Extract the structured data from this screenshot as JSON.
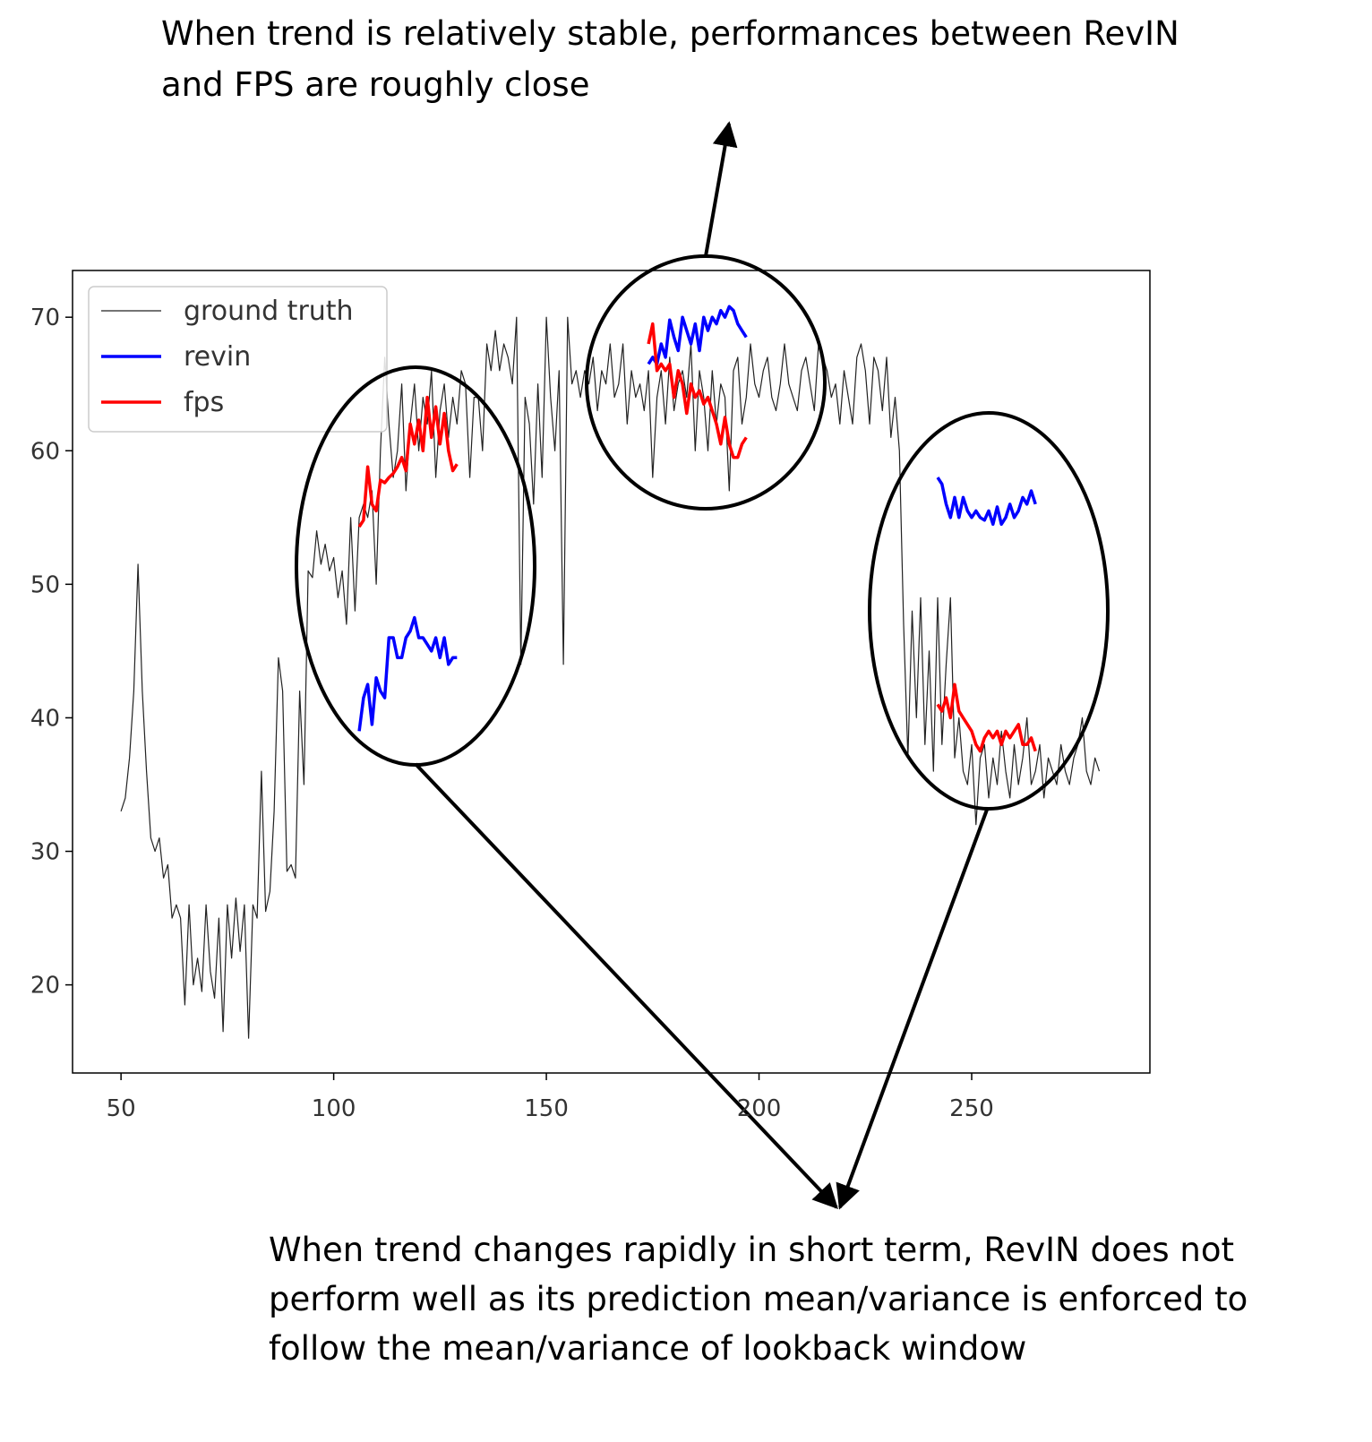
{
  "chart_data": {
    "type": "line",
    "xlim": [
      38.6,
      291.9
    ],
    "ylim": [
      13.4,
      73.5
    ],
    "xticks": [
      50,
      100,
      150,
      200,
      250
    ],
    "yticks": [
      20,
      30,
      40,
      50,
      60,
      70
    ],
    "grid": false,
    "legend": "upper left",
    "series": [
      {
        "name": "ground truth",
        "color": "#222222",
        "x": [
          50,
          51,
          52,
          53,
          54,
          55,
          56,
          57,
          58,
          59,
          60,
          61,
          62,
          63,
          64,
          65,
          66,
          67,
          68,
          69,
          70,
          71,
          72,
          73,
          74,
          75,
          76,
          77,
          78,
          79,
          80,
          81,
          82,
          83,
          84,
          85,
          86,
          87,
          88,
          89,
          90,
          91,
          92,
          93,
          94,
          95,
          96,
          97,
          98,
          99,
          100,
          101,
          102,
          103,
          104,
          105,
          106,
          107,
          108,
          109,
          110,
          111,
          112,
          113,
          114,
          115,
          116,
          117,
          118,
          119,
          120,
          121,
          122,
          123,
          124,
          125,
          126,
          127,
          128,
          129,
          130,
          131,
          132,
          133,
          134,
          135,
          136,
          137,
          138,
          139,
          140,
          141,
          142,
          143,
          144,
          145,
          146,
          147,
          148,
          149,
          150,
          151,
          152,
          153,
          154,
          155,
          156,
          157,
          158,
          159,
          160,
          161,
          162,
          163,
          164,
          165,
          166,
          167,
          168,
          169,
          170,
          171,
          172,
          173,
          174,
          175,
          176,
          177,
          178,
          179,
          180,
          181,
          182,
          183,
          184,
          185,
          186,
          187,
          188,
          189,
          190,
          191,
          192,
          193,
          194,
          195,
          196,
          197,
          198,
          199,
          200,
          201,
          202,
          203,
          204,
          205,
          206,
          207,
          208,
          209,
          210,
          211,
          212,
          213,
          214,
          215,
          216,
          217,
          218,
          219,
          220,
          221,
          222,
          223,
          224,
          225,
          226,
          227,
          228,
          229,
          230,
          231,
          232,
          233,
          234,
          235,
          236,
          237,
          238,
          239,
          240,
          241,
          242,
          243,
          244,
          245,
          246,
          247,
          248,
          249,
          250,
          251,
          252,
          253,
          254,
          255,
          256,
          257,
          258,
          259,
          260,
          261,
          262,
          263,
          264,
          265,
          266,
          267,
          268,
          269,
          270,
          271,
          272,
          273,
          274,
          275,
          276,
          277,
          278,
          279,
          280
        ],
        "values": [
          33,
          34,
          37,
          42,
          51.5,
          42,
          36,
          31,
          30,
          31,
          28,
          29,
          25,
          26,
          25,
          18.5,
          26,
          20,
          22,
          19.5,
          26,
          21,
          19,
          25,
          16.5,
          26,
          22,
          26.5,
          22.5,
          26,
          16,
          26,
          25,
          36,
          25.5,
          27,
          33,
          44.5,
          42,
          28.5,
          29,
          28,
          42,
          35,
          51,
          50.5,
          54,
          51.5,
          53,
          51,
          52,
          49,
          51,
          47,
          55,
          48,
          55,
          56,
          55,
          57,
          50,
          60,
          67,
          62,
          58,
          60,
          65,
          57,
          62,
          65,
          60,
          64,
          62,
          66,
          58,
          63,
          65,
          61,
          64,
          62,
          66,
          65,
          58,
          64,
          64,
          60,
          68,
          66,
          69,
          66,
          68,
          67,
          65,
          70,
          44,
          64,
          62,
          56,
          65,
          58,
          70,
          64,
          60,
          66,
          44,
          70,
          65,
          66,
          64,
          66,
          65,
          67,
          63,
          66,
          65,
          68,
          64,
          65,
          68,
          62,
          66,
          64,
          65,
          63,
          66,
          58,
          64,
          66,
          62,
          67,
          63,
          65,
          66,
          64,
          68,
          60,
          66,
          64,
          60,
          66,
          62,
          65,
          64,
          57,
          66,
          67,
          62,
          64,
          68,
          65,
          64,
          66,
          67,
          64,
          63,
          65,
          68,
          65,
          64,
          63,
          66,
          67,
          65,
          63,
          68,
          67,
          66,
          64,
          65,
          62,
          66,
          64,
          62,
          67,
          68,
          66,
          62,
          67,
          66,
          63,
          67,
          61,
          64,
          60,
          47,
          37,
          48,
          40,
          49,
          38,
          45,
          36,
          49,
          38,
          44,
          49,
          37,
          40,
          36,
          35,
          38,
          32,
          37,
          38,
          34,
          37,
          35,
          39,
          36,
          34,
          38,
          35,
          37,
          40,
          35,
          36,
          38,
          34,
          37,
          36,
          35,
          38,
          36,
          35,
          37,
          38,
          40,
          36,
          35,
          37,
          36
        ]
      },
      {
        "name": "revin",
        "color": "#0000ff",
        "segments": [
          {
            "x": [
              106,
              107,
              108,
              109,
              110,
              111,
              112,
              113,
              114,
              115,
              116,
              117,
              118,
              119,
              120,
              121,
              122,
              123,
              124,
              125,
              126,
              127,
              128,
              129
            ],
            "values": [
              39,
              41.5,
              42.5,
              39.5,
              43,
              42,
              41.5,
              46,
              46,
              44.5,
              44.5,
              46,
              46.5,
              47.5,
              46,
              46,
              45.5,
              45,
              46,
              44.5,
              46,
              44,
              44.5,
              44.5
            ]
          },
          {
            "x": [
              174,
              175,
              176,
              177,
              178,
              179,
              180,
              181,
              182,
              183,
              184,
              185,
              186,
              187,
              188,
              189,
              190,
              191,
              192,
              193,
              194,
              195,
              196,
              197
            ],
            "values": [
              66.5,
              67,
              66.5,
              68,
              67,
              69.8,
              68.5,
              67.5,
              70,
              69,
              68,
              69.5,
              67.5,
              70,
              69,
              70,
              69.5,
              70.5,
              70,
              70.8,
              70.5,
              69.5,
              69,
              68.5
            ]
          },
          {
            "x": [
              242,
              243,
              244,
              245,
              246,
              247,
              248,
              249,
              250,
              251,
              252,
              253,
              254,
              255,
              256,
              257,
              258,
              259,
              260,
              261,
              262,
              263,
              264,
              265
            ],
            "values": [
              58,
              57.5,
              56,
              55,
              56.5,
              55,
              56.5,
              55.5,
              55,
              55.5,
              55,
              54.8,
              55.5,
              54.5,
              55.8,
              54.5,
              55,
              56,
              55,
              55.5,
              56.5,
              56,
              57,
              56
            ]
          }
        ]
      },
      {
        "name": "fps",
        "color": "#ff0000",
        "segments": [
          {
            "x": [
              106,
              107,
              108,
              109,
              110,
              111,
              112,
              113,
              114,
              115,
              116,
              117,
              118,
              119,
              120,
              121,
              122,
              123,
              124,
              125,
              126,
              127,
              128,
              129
            ],
            "values": [
              54.3,
              54.8,
              58.8,
              56,
              55.5,
              57.8,
              57.6,
              58,
              58.3,
              58.8,
              59.5,
              58.5,
              62,
              60.5,
              62.3,
              60,
              64,
              61,
              63.3,
              60.5,
              62.8,
              60,
              58.5,
              59
            ]
          },
          {
            "x": [
              174,
              175,
              176,
              177,
              178,
              179,
              180,
              181,
              182,
              183,
              184,
              185,
              186,
              187,
              188,
              189,
              190,
              191,
              192,
              193,
              194,
              195,
              196,
              197
            ],
            "values": [
              68,
              69.5,
              66,
              66.5,
              66,
              66.5,
              64,
              66,
              65,
              62.8,
              65,
              64,
              64.5,
              63.5,
              64,
              63,
              62,
              60.5,
              62.5,
              60.5,
              59.5,
              59.5,
              60.5,
              61
            ]
          },
          {
            "x": [
              242,
              243,
              244,
              245,
              246,
              247,
              248,
              249,
              250,
              251,
              252,
              253,
              254,
              255,
              256,
              257,
              258,
              259,
              260,
              261,
              262,
              263,
              264,
              265
            ],
            "values": [
              41,
              40.5,
              41.5,
              40,
              42.5,
              40.5,
              40,
              39.5,
              39,
              38,
              37.5,
              38.5,
              39,
              38.5,
              39,
              38,
              39,
              38.5,
              39,
              39.5,
              38,
              38,
              38.5,
              37.5
            ]
          }
        ]
      }
    ],
    "annotations": [
      [
        "When trend is relatively stable, performances between RevIN",
        "and FPS are roughly close"
      ],
      [
        "When trend changes rapidly in short term, RevIN does not",
        "perform well as its prediction mean/variance is enforced to",
        "follow the mean/variance of lookback window"
      ]
    ]
  }
}
